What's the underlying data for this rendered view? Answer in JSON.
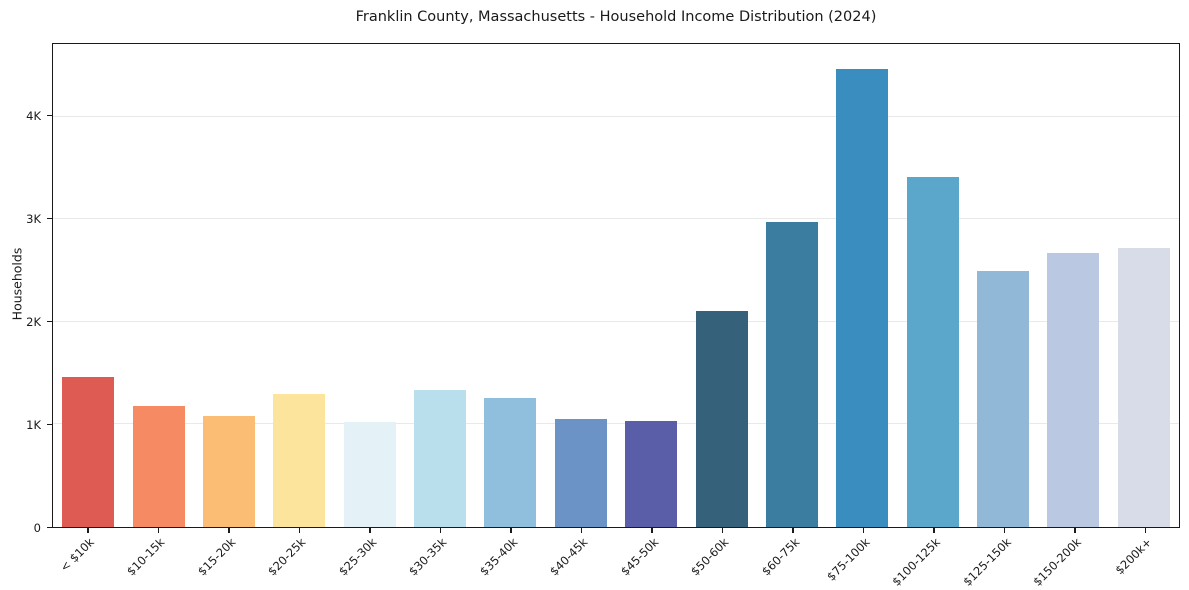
{
  "figure": {
    "title": "Franklin County, Massachusetts - Household Income Distribution (2024)"
  },
  "chart_data": {
    "type": "bar",
    "title": "Franklin County, Massachusetts - Household Income Distribution (2024)",
    "xlabel": "",
    "ylabel": "Households",
    "categories": [
      "< $10k",
      "$10-15k",
      "$15-20k",
      "$20-25k",
      "$25-30k",
      "$30-35k",
      "$35-40k",
      "$40-45k",
      "$45-50k",
      "$50-60k",
      "$60-75k",
      "$75-100k",
      "$100-125k",
      "$125-150k",
      "$150-200k",
      "$200k+"
    ],
    "values": [
      1460,
      1175,
      1080,
      1300,
      1020,
      1340,
      1260,
      1055,
      1030,
      2110,
      2975,
      4465,
      3410,
      2500,
      2670,
      2720
    ],
    "bar_colors": [
      "#dd5b52",
      "#f68a62",
      "#fbbc74",
      "#fde49c",
      "#e4f2f7",
      "#badfec",
      "#90bedd",
      "#6b93c5",
      "#5a5ea8",
      "#35617a",
      "#3a7da1",
      "#3a8ebf",
      "#5aa7cb",
      "#92b8d8",
      "#bac9e1",
      "#d8dbe8"
    ],
    "y_ticks": [
      {
        "label": "0",
        "value": 0
      },
      {
        "label": "1K",
        "value": 1000
      },
      {
        "label": "2K",
        "value": 2000
      },
      {
        "label": "3K",
        "value": 3000
      },
      {
        "label": "4K",
        "value": 4000
      }
    ],
    "ylim": [
      0,
      4709
    ],
    "grid": "horizontal-only",
    "legend": "none",
    "frame": true
  }
}
